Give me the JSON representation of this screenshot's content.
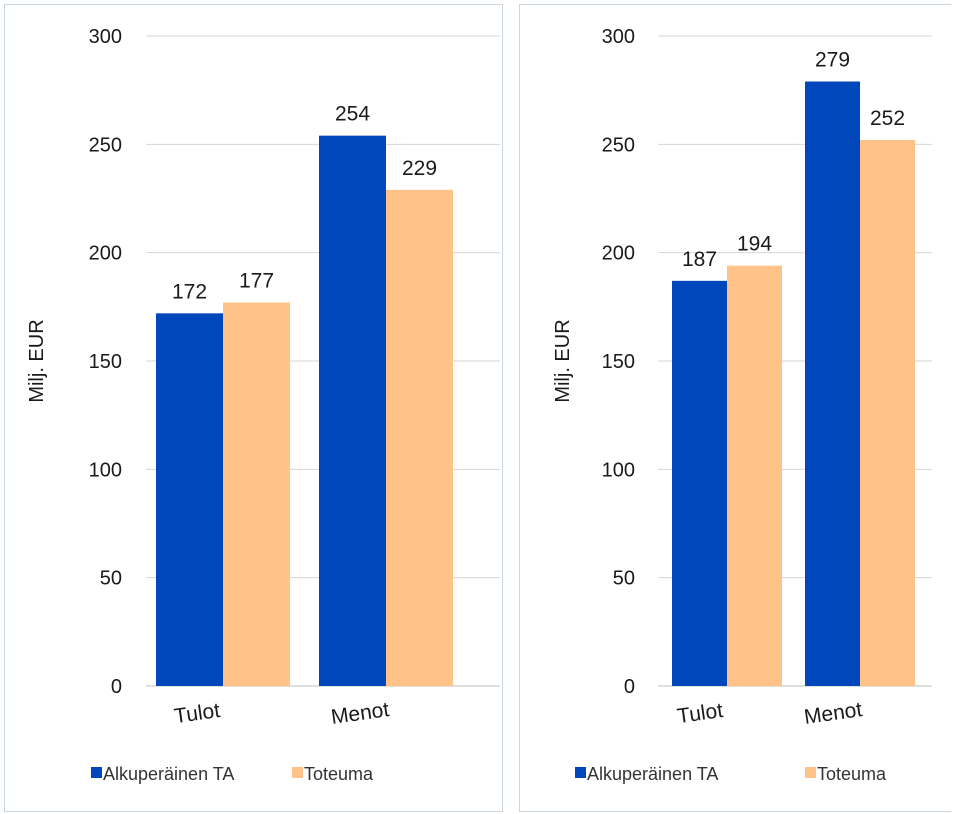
{
  "colors": {
    "series_1": "#0047bb",
    "series_2": "#ffc38a",
    "gridline": "#d6d6d6",
    "axis": "#bfbfbf",
    "panel_border": "#c9d6df"
  },
  "chart_data": [
    {
      "type": "bar",
      "title": "",
      "xlabel": "",
      "ylabel": "Milj. EUR",
      "ylim": [
        0,
        300
      ],
      "yticks": [
        0,
        50,
        100,
        150,
        200,
        250,
        300
      ],
      "categories": [
        "Tulot",
        "Menot"
      ],
      "series": [
        {
          "name": "Alkuperäinen TA",
          "values": [
            172,
            254
          ]
        },
        {
          "name": "Toteuma",
          "values": [
            177,
            229
          ]
        }
      ],
      "data_labels": true,
      "grid": true,
      "legend_position": "bottom"
    },
    {
      "type": "bar",
      "title": "",
      "xlabel": "",
      "ylabel": "Milj. EUR",
      "ylim": [
        0,
        300
      ],
      "yticks": [
        0,
        50,
        100,
        150,
        200,
        250,
        300
      ],
      "categories": [
        "Tulot",
        "Menot"
      ],
      "series": [
        {
          "name": "Alkuperäinen TA",
          "values": [
            187,
            279
          ]
        },
        {
          "name": "Toteuma",
          "values": [
            194,
            252
          ]
        }
      ],
      "data_labels": true,
      "grid": true,
      "legend_position": "bottom"
    }
  ]
}
